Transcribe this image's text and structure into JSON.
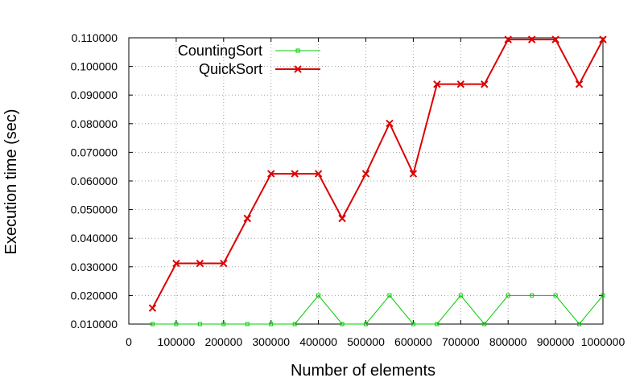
{
  "chart_data": {
    "type": "line",
    "xlabel": "Number of elements",
    "ylabel": "Execution time (sec)",
    "xlim": [
      0,
      1000000
    ],
    "ylim": [
      0.01,
      0.11
    ],
    "x_ticks": [
      0,
      100000,
      200000,
      300000,
      400000,
      500000,
      600000,
      700000,
      800000,
      900000,
      1000000
    ],
    "x_tick_labels": [
      "0",
      "100000",
      "200000",
      "300000",
      "400000",
      "500000",
      "600000",
      "700000",
      "800000",
      "900000",
      "1000000"
    ],
    "y_ticks": [
      0.01,
      0.02,
      0.03,
      0.04,
      0.05,
      0.06,
      0.07,
      0.08,
      0.09,
      0.1,
      0.11
    ],
    "y_tick_labels": [
      "0.010000",
      "0.020000",
      "0.030000",
      "0.040000",
      "0.050000",
      "0.060000",
      "0.070000",
      "0.080000",
      "0.090000",
      "0.100000",
      "0.110000"
    ],
    "grid": true,
    "legend_position": "top-left",
    "x": [
      50000,
      100000,
      150000,
      200000,
      250000,
      300000,
      350000,
      400000,
      450000,
      500000,
      550000,
      600000,
      650000,
      700000,
      750000,
      800000,
      850000,
      900000,
      950000,
      1000000
    ],
    "series": [
      {
        "name": "CountingSort",
        "color": "#00cc00",
        "marker": "open-square",
        "values": [
          0.01,
          0.01,
          0.01,
          0.01,
          0.01,
          0.01,
          0.01,
          0.02,
          0.01,
          0.01,
          0.02,
          0.01,
          0.01,
          0.02,
          0.01,
          0.02,
          0.02,
          0.02,
          0.01,
          0.02
        ]
      },
      {
        "name": "QuickSort",
        "color": "#dd0000",
        "marker": "x",
        "values": [
          0.0156,
          0.0312,
          0.0312,
          0.0312,
          0.0469,
          0.0625,
          0.0625,
          0.0625,
          0.0469,
          0.0625,
          0.0801,
          0.0625,
          0.0938,
          0.0938,
          0.0938,
          0.1094,
          0.1094,
          0.1094,
          0.0938,
          0.1094
        ]
      }
    ]
  }
}
